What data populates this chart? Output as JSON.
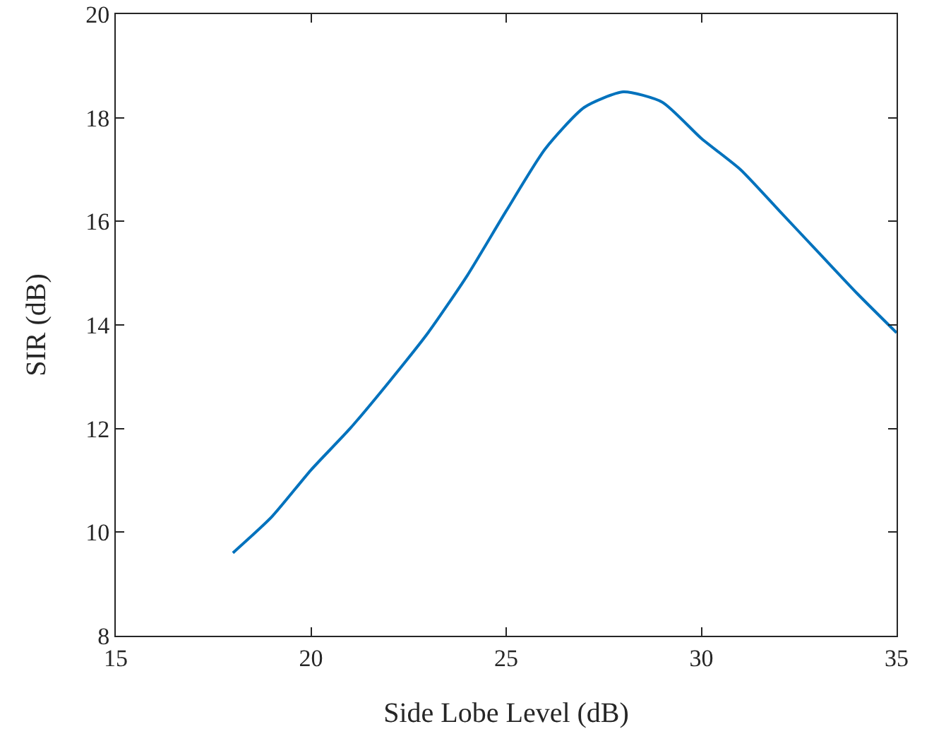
{
  "chart_data": {
    "type": "line",
    "xlabel": "Side Lobe Level (dB)",
    "ylabel": "SIR (dB)",
    "x": [
      18,
      19,
      20,
      21,
      22,
      23,
      24,
      25,
      26,
      27,
      28,
      29,
      30,
      31,
      32,
      33,
      34,
      35
    ],
    "series": [
      {
        "color": "#0072bd",
        "values": [
          9.6,
          10.3,
          11.2,
          12.0,
          12.9,
          13.85,
          14.95,
          16.2,
          17.4,
          18.2,
          18.5,
          18.3,
          17.6,
          17.0,
          16.2,
          15.4,
          14.6,
          13.85
        ]
      }
    ],
    "xlim": [
      15,
      35
    ],
    "xticks": [
      15,
      20,
      25,
      30,
      35
    ],
    "ylim": [
      8,
      20
    ],
    "yticks": [
      8,
      10,
      12,
      14,
      16,
      18,
      20
    ],
    "grid": false,
    "marker": "none",
    "line_style": "solid"
  }
}
